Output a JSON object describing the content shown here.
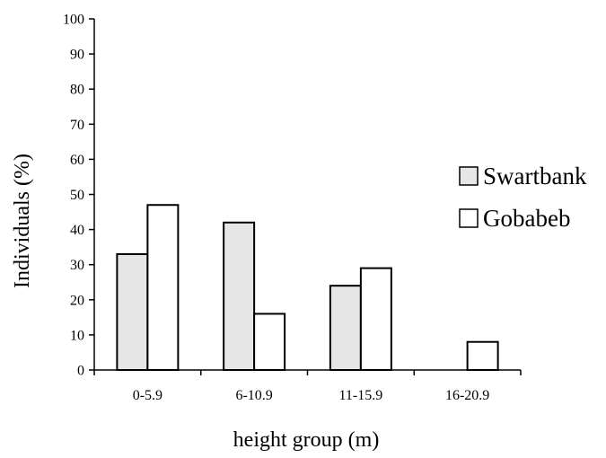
{
  "chart_data": {
    "type": "bar",
    "title": "",
    "xlabel": "height group (m)",
    "ylabel": "Individuals (%)",
    "ylim": [
      0,
      100
    ],
    "yticks": [
      0,
      10,
      20,
      30,
      40,
      50,
      60,
      70,
      80,
      90,
      100
    ],
    "categories": [
      "0-5.9",
      "6-10.9",
      "11-15.9",
      "16-20.9"
    ],
    "series": [
      {
        "name": "Swartbank",
        "values": [
          33,
          42,
          24,
          0
        ],
        "color": "#e6e6e6"
      },
      {
        "name": "Gobabeb",
        "values": [
          47,
          16,
          29,
          8
        ],
        "color": "#ffffff"
      }
    ],
    "grid": false,
    "legend_position": "right"
  }
}
